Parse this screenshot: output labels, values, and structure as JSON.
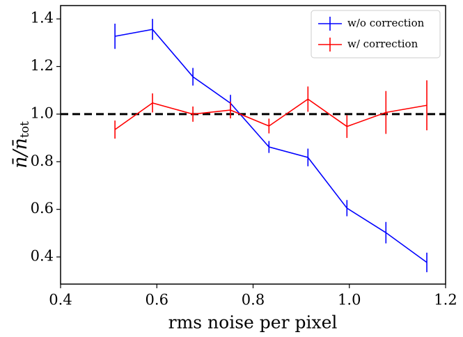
{
  "chart_data": {
    "type": "line",
    "xlabel": "rms noise per pixel",
    "ylabel": "n̄/n̄",
    "ylabel_sub": "tot",
    "x": [
      0.513,
      0.591,
      0.675,
      0.753,
      0.833,
      0.914,
      0.995,
      1.076,
      1.161
    ],
    "series": [
      {
        "name": "w/o correction",
        "color": "#0000ff",
        "values": [
          1.327,
          1.356,
          1.157,
          1.046,
          0.862,
          0.818,
          0.605,
          0.502,
          0.377
        ],
        "errors": [
          0.053,
          0.044,
          0.037,
          0.035,
          0.025,
          0.037,
          0.034,
          0.045,
          0.041
        ]
      },
      {
        "name": "w/ correction",
        "color": "#ff0000",
        "values": [
          0.935,
          1.047,
          1.0,
          1.017,
          0.95,
          1.063,
          0.948,
          1.007,
          1.037
        ],
        "errors": [
          0.038,
          0.04,
          0.032,
          0.035,
          0.031,
          0.053,
          0.048,
          0.09,
          0.105
        ]
      }
    ],
    "hline": {
      "y": 1,
      "color": "#000000",
      "dashed": true
    },
    "xlim": [
      0.4,
      1.2
    ],
    "ylim": [
      0.286,
      1.456
    ],
    "xticks": [
      0.4,
      0.6,
      0.8,
      {
        "value": 1,
        "label": "1.0"
      },
      1.2
    ],
    "yticks": [
      0.4,
      0.6,
      0.8,
      {
        "value": 1,
        "label": "1.0"
      },
      1.2,
      1.4
    ],
    "legend": "upper right",
    "grid": false
  }
}
